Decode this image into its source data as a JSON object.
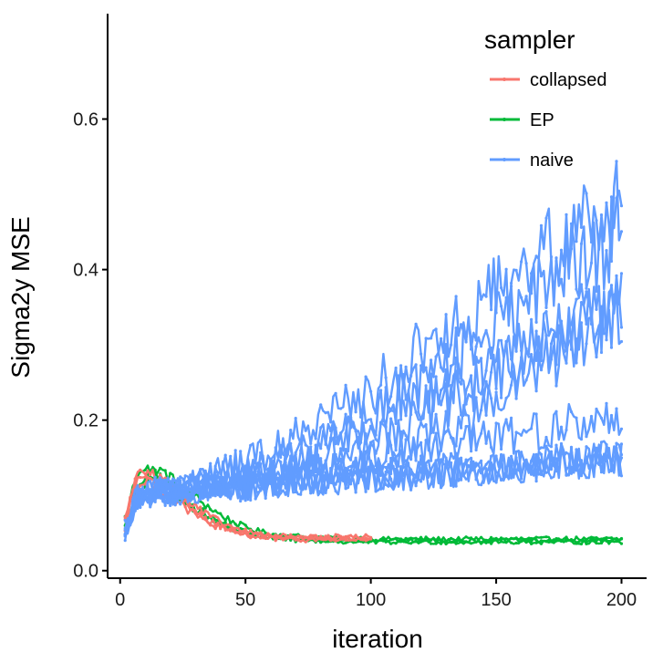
{
  "chart_data": {
    "type": "line",
    "title": "",
    "xlabel": "iteration",
    "ylabel": "Sigma2y MSE",
    "xlim": [
      -5,
      210
    ],
    "ylim": [
      -0.01,
      0.74
    ],
    "xticks": [
      0,
      50,
      100,
      150,
      200
    ],
    "yticks": [
      0.0,
      0.2,
      0.4,
      0.6
    ],
    "xtick_labels": [
      "0",
      "50",
      "100",
      "150",
      "200"
    ],
    "ytick_labels": [
      "0.0",
      "0.2",
      "0.4",
      "0.6"
    ],
    "grid": false,
    "legend_position": "top-right",
    "legend_title": "sampler",
    "colors": {
      "collapsed": "#F8766D",
      "EP": "#00BA38",
      "naive": "#619CFF"
    },
    "series": [
      {
        "name": "EP",
        "group": "EP",
        "x_start": 2,
        "x_end": 200,
        "y": [
          0.07,
          0.112,
          0.125,
          0.133,
          0.13,
          0.118,
          0.108,
          0.098,
          0.089,
          0.079,
          0.071,
          0.064,
          0.058,
          0.054,
          0.051,
          0.048,
          0.047,
          0.046,
          0.046,
          0.045,
          0.044,
          0.044,
          0.043,
          0.043,
          0.043,
          0.042,
          0.042,
          0.042,
          0.042,
          0.042,
          0.042,
          0.042,
          0.042,
          0.042,
          0.042,
          0.042,
          0.042,
          0.042,
          0.042,
          0.042,
          0.042,
          0.042,
          0.042,
          0.042,
          0.042,
          0.042,
          0.042,
          0.042,
          0.042,
          0.042,
          0.042
        ]
      },
      {
        "name": "EP",
        "group": "EP",
        "x_start": 2,
        "x_end": 200,
        "y": [
          0.05,
          0.1,
          0.115,
          0.118,
          0.112,
          0.105,
          0.095,
          0.085,
          0.076,
          0.068,
          0.062,
          0.056,
          0.052,
          0.049,
          0.047,
          0.045,
          0.044,
          0.043,
          0.043,
          0.042,
          0.042,
          0.041,
          0.041,
          0.041,
          0.04,
          0.04,
          0.04,
          0.04,
          0.04,
          0.04,
          0.04,
          0.04,
          0.04,
          0.04,
          0.04,
          0.04,
          0.04,
          0.04,
          0.04,
          0.04,
          0.04,
          0.04,
          0.04,
          0.04,
          0.04,
          0.04,
          0.04,
          0.04,
          0.04,
          0.04,
          0.04
        ]
      },
      {
        "name": "EP",
        "group": "EP",
        "x_start": 2,
        "x_end": 200,
        "y": [
          0.06,
          0.125,
          0.138,
          0.128,
          0.116,
          0.103,
          0.092,
          0.082,
          0.073,
          0.065,
          0.059,
          0.054,
          0.05,
          0.047,
          0.045,
          0.043,
          0.042,
          0.041,
          0.04,
          0.04,
          0.039,
          0.039,
          0.038,
          0.038,
          0.038,
          0.038,
          0.038,
          0.038,
          0.038,
          0.038,
          0.038,
          0.038,
          0.038,
          0.038,
          0.038,
          0.038,
          0.038,
          0.038,
          0.038,
          0.038,
          0.038,
          0.038,
          0.038,
          0.038,
          0.038,
          0.038,
          0.038,
          0.038,
          0.038,
          0.038,
          0.038
        ]
      },
      {
        "name": "collapsed",
        "group": "collapsed",
        "x_start": 2,
        "x_end": 100,
        "y": [
          0.065,
          0.115,
          0.128,
          0.125,
          0.115,
          0.103,
          0.092,
          0.081,
          0.072,
          0.064,
          0.058,
          0.053,
          0.05,
          0.048,
          0.046,
          0.045,
          0.044,
          0.043,
          0.043,
          0.043,
          0.043,
          0.043,
          0.043,
          0.043,
          0.043,
          0.043
        ]
      },
      {
        "name": "collapsed",
        "group": "collapsed",
        "x_start": 2,
        "x_end": 100,
        "y": [
          0.055,
          0.1,
          0.118,
          0.113,
          0.104,
          0.094,
          0.084,
          0.075,
          0.067,
          0.06,
          0.055,
          0.051,
          0.048,
          0.046,
          0.044,
          0.043,
          0.042,
          0.041,
          0.041,
          0.041,
          0.041,
          0.041,
          0.041,
          0.041,
          0.041,
          0.041
        ]
      },
      {
        "name": "collapsed",
        "group": "collapsed",
        "x_start": 2,
        "x_end": 100,
        "y": [
          0.07,
          0.122,
          0.132,
          0.127,
          0.118,
          0.107,
          0.096,
          0.086,
          0.077,
          0.069,
          0.062,
          0.057,
          0.053,
          0.05,
          0.048,
          0.047,
          0.046,
          0.045,
          0.045,
          0.045,
          0.045,
          0.045,
          0.045,
          0.045,
          0.045,
          0.045
        ]
      },
      {
        "name": "naive",
        "group": "naive",
        "x_start": 2,
        "x_end": 200,
        "y": [
          0.04,
          0.08,
          0.1,
          0.105,
          0.108,
          0.11,
          0.112,
          0.115,
          0.115,
          0.118,
          0.12,
          0.12,
          0.122,
          0.125,
          0.127,
          0.13,
          0.13,
          0.133,
          0.135,
          0.138,
          0.14,
          0.142,
          0.145,
          0.148,
          0.15,
          0.155,
          0.158,
          0.16,
          0.165,
          0.17,
          0.175,
          0.18,
          0.185,
          0.19,
          0.195,
          0.2,
          0.21,
          0.22,
          0.23,
          0.24,
          0.25,
          0.26,
          0.27,
          0.28,
          0.29,
          0.3,
          0.31,
          0.32,
          0.33,
          0.34,
          0.35
        ]
      },
      {
        "name": "naive",
        "group": "naive",
        "x_start": 2,
        "x_end": 200,
        "y": [
          0.05,
          0.09,
          0.1,
          0.102,
          0.104,
          0.105,
          0.106,
          0.108,
          0.109,
          0.11,
          0.112,
          0.113,
          0.115,
          0.116,
          0.118,
          0.12,
          0.122,
          0.125,
          0.128,
          0.13,
          0.133,
          0.135,
          0.138,
          0.14,
          0.143,
          0.145,
          0.148,
          0.15,
          0.153,
          0.155,
          0.158,
          0.16,
          0.163,
          0.165,
          0.168,
          0.17,
          0.173,
          0.175,
          0.178,
          0.18,
          0.183,
          0.185,
          0.188,
          0.19,
          0.192,
          0.194,
          0.196,
          0.197,
          0.198,
          0.199,
          0.2
        ]
      },
      {
        "name": "naive",
        "group": "naive",
        "x_start": 2,
        "x_end": 200,
        "y": [
          0.045,
          0.085,
          0.098,
          0.1,
          0.102,
          0.103,
          0.104,
          0.105,
          0.106,
          0.107,
          0.108,
          0.109,
          0.11,
          0.111,
          0.112,
          0.113,
          0.114,
          0.115,
          0.116,
          0.117,
          0.118,
          0.119,
          0.12,
          0.121,
          0.122,
          0.123,
          0.124,
          0.125,
          0.126,
          0.127,
          0.128,
          0.129,
          0.13,
          0.131,
          0.132,
          0.133,
          0.134,
          0.135,
          0.136,
          0.137,
          0.138,
          0.139,
          0.14,
          0.141,
          0.142,
          0.143,
          0.144,
          0.145,
          0.146,
          0.147,
          0.148
        ]
      },
      {
        "name": "naive",
        "group": "naive",
        "x_start": 2,
        "x_end": 200,
        "y": [
          0.055,
          0.092,
          0.102,
          0.104,
          0.106,
          0.108,
          0.11,
          0.112,
          0.114,
          0.116,
          0.118,
          0.12,
          0.123,
          0.126,
          0.129,
          0.132,
          0.135,
          0.138,
          0.142,
          0.146,
          0.15,
          0.155,
          0.16,
          0.165,
          0.17,
          0.175,
          0.18,
          0.186,
          0.192,
          0.198,
          0.205,
          0.212,
          0.22,
          0.228,
          0.236,
          0.244,
          0.252,
          0.26,
          0.268,
          0.276,
          0.284,
          0.292,
          0.3,
          0.308,
          0.316,
          0.324,
          0.332,
          0.34,
          0.348,
          0.356,
          0.364
        ]
      },
      {
        "name": "naive",
        "group": "naive",
        "x_start": 2,
        "x_end": 200,
        "y": [
          0.048,
          0.088,
          0.099,
          0.1,
          0.101,
          0.102,
          0.103,
          0.104,
          0.105,
          0.106,
          0.107,
          0.108,
          0.109,
          0.11,
          0.111,
          0.112,
          0.113,
          0.114,
          0.115,
          0.116,
          0.117,
          0.118,
          0.119,
          0.12,
          0.121,
          0.122,
          0.123,
          0.124,
          0.125,
          0.126,
          0.127,
          0.128,
          0.129,
          0.13,
          0.131,
          0.132,
          0.133,
          0.134,
          0.135,
          0.136,
          0.137,
          0.138,
          0.139,
          0.14,
          0.141,
          0.142,
          0.143,
          0.144,
          0.145,
          0.146,
          0.147
        ]
      },
      {
        "name": "naive",
        "group": "naive",
        "x_start": 2,
        "x_end": 200,
        "y": [
          0.06,
          0.095,
          0.105,
          0.108,
          0.11,
          0.112,
          0.115,
          0.118,
          0.121,
          0.124,
          0.127,
          0.13,
          0.134,
          0.138,
          0.142,
          0.146,
          0.15,
          0.155,
          0.16,
          0.165,
          0.17,
          0.175,
          0.18,
          0.186,
          0.192,
          0.198,
          0.204,
          0.21,
          0.216,
          0.222,
          0.228,
          0.234,
          0.24,
          0.246,
          0.252,
          0.258,
          0.264,
          0.27,
          0.276,
          0.282,
          0.288,
          0.294,
          0.3,
          0.306,
          0.312,
          0.318,
          0.324,
          0.33,
          0.336,
          0.342,
          0.348
        ]
      },
      {
        "name": "naive",
        "group": "naive",
        "x_start": 2,
        "x_end": 200,
        "y": [
          0.05,
          0.09,
          0.1,
          0.102,
          0.104,
          0.106,
          0.108,
          0.11,
          0.112,
          0.113,
          0.114,
          0.115,
          0.116,
          0.117,
          0.118,
          0.119,
          0.12,
          0.121,
          0.122,
          0.123,
          0.124,
          0.125,
          0.126,
          0.127,
          0.128,
          0.129,
          0.13,
          0.131,
          0.132,
          0.133,
          0.134,
          0.135,
          0.136,
          0.137,
          0.138,
          0.139,
          0.14,
          0.141,
          0.142,
          0.143,
          0.144,
          0.145,
          0.146,
          0.147,
          0.148,
          0.149,
          0.15,
          0.151,
          0.152,
          0.153,
          0.154
        ]
      },
      {
        "name": "naive",
        "group": "naive",
        "x_start": 2,
        "x_end": 200,
        "y": [
          0.052,
          0.093,
          0.103,
          0.105,
          0.107,
          0.109,
          0.111,
          0.113,
          0.116,
          0.119,
          0.122,
          0.125,
          0.128,
          0.132,
          0.136,
          0.14,
          0.145,
          0.15,
          0.156,
          0.162,
          0.168,
          0.175,
          0.182,
          0.19,
          0.198,
          0.206,
          0.215,
          0.224,
          0.233,
          0.242,
          0.252,
          0.262,
          0.272,
          0.282,
          0.292,
          0.302,
          0.312,
          0.322,
          0.332,
          0.342,
          0.352,
          0.362,
          0.372,
          0.382,
          0.392,
          0.402,
          0.412,
          0.422,
          0.432,
          0.442,
          0.452
        ]
      },
      {
        "name": "naive",
        "group": "naive",
        "x_start": 2,
        "x_end": 200,
        "y": [
          0.047,
          0.087,
          0.097,
          0.099,
          0.101,
          0.102,
          0.103,
          0.104,
          0.105,
          0.106,
          0.107,
          0.108,
          0.109,
          0.11,
          0.111,
          0.112,
          0.113,
          0.114,
          0.115,
          0.116,
          0.117,
          0.118,
          0.119,
          0.12,
          0.121,
          0.122,
          0.123,
          0.124,
          0.125,
          0.126,
          0.127,
          0.128,
          0.129,
          0.13,
          0.131,
          0.132,
          0.133,
          0.134,
          0.135,
          0.136,
          0.137,
          0.138,
          0.139,
          0.14,
          0.141,
          0.142,
          0.143,
          0.144,
          0.145,
          0.146,
          0.147
        ]
      },
      {
        "name": "naive",
        "group": "naive",
        "x_start": 2,
        "x_end": 200,
        "y": [
          0.058,
          0.096,
          0.106,
          0.109,
          0.112,
          0.115,
          0.118,
          0.122,
          0.126,
          0.13,
          0.135,
          0.14,
          0.145,
          0.15,
          0.156,
          0.162,
          0.168,
          0.175,
          0.182,
          0.19,
          0.198,
          0.206,
          0.215,
          0.224,
          0.233,
          0.242,
          0.252,
          0.262,
          0.272,
          0.282,
          0.292,
          0.302,
          0.312,
          0.322,
          0.332,
          0.342,
          0.352,
          0.362,
          0.372,
          0.382,
          0.392,
          0.402,
          0.412,
          0.422,
          0.432,
          0.442,
          0.452,
          0.462,
          0.472,
          0.482,
          0.492
        ]
      }
    ]
  }
}
